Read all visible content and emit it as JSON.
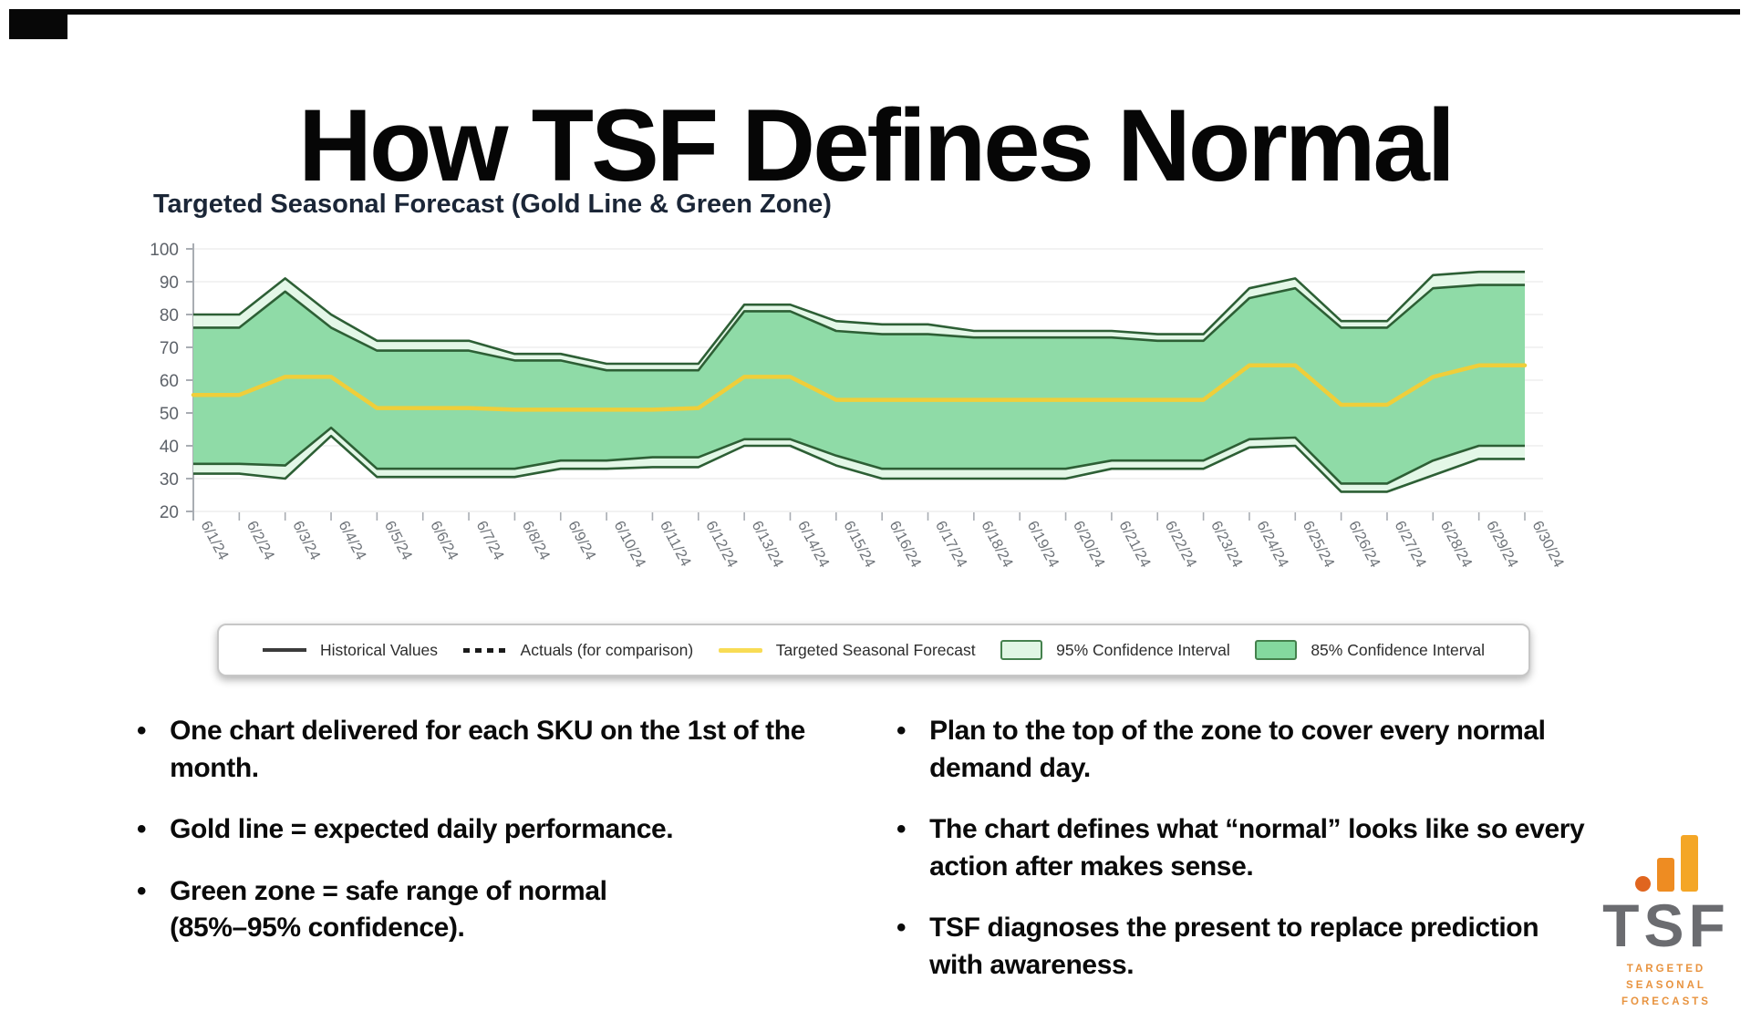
{
  "page": {
    "title": "How TSF Defines Normal"
  },
  "chart": {
    "title": "Targeted Seasonal Forecast (Gold Line & Green Zone)",
    "legend": [
      {
        "label": "Historical Values",
        "swatch": "line-dark"
      },
      {
        "label": "Actuals (for comparison)",
        "swatch": "line-dotted"
      },
      {
        "label": "Targeted Seasonal Forecast",
        "swatch": "line-gold"
      },
      {
        "label": "95% Confidence Interval",
        "swatch": "fill-light-green"
      },
      {
        "label": "85% Confidence Interval",
        "swatch": "fill-green"
      }
    ]
  },
  "chart_data": {
    "type": "area",
    "title": "Targeted Seasonal Forecast (Gold Line & Green Zone)",
    "categories": [
      "6/1/24",
      "6/2/24",
      "6/3/24",
      "6/4/24",
      "6/5/24",
      "6/6/24",
      "6/7/24",
      "6/8/24",
      "6/9/24",
      "6/10/24",
      "6/11/24",
      "6/12/24",
      "6/13/24",
      "6/14/24",
      "6/15/24",
      "6/16/24",
      "6/17/24",
      "6/18/24",
      "6/19/24",
      "6/20/24",
      "6/21/24",
      "6/22/24",
      "6/23/24",
      "6/24/24",
      "6/25/24",
      "6/26/24",
      "6/27/24",
      "6/28/24",
      "6/29/24",
      "6/30/24"
    ],
    "ylim": [
      20,
      100
    ],
    "yticks": [
      100,
      90,
      80,
      70,
      60,
      50,
      40,
      30,
      20
    ],
    "grid": "horizontal",
    "legend_position": "bottom",
    "series": [
      {
        "name": "95% Confidence Interval (upper bound)",
        "values": [
          80,
          80,
          91,
          80,
          72,
          72,
          72,
          68,
          68,
          65,
          65,
          65,
          83,
          83,
          78,
          77,
          77,
          75,
          75,
          75,
          75,
          74,
          74,
          88,
          91,
          78,
          78,
          92,
          93,
          93
        ]
      },
      {
        "name": "85% Confidence Interval (upper bound)",
        "values": [
          76,
          76,
          87,
          76,
          69,
          69,
          69,
          66,
          66,
          63,
          63,
          63,
          81,
          81,
          75,
          74,
          74,
          73,
          73,
          73,
          73,
          72,
          72,
          85,
          88,
          76,
          76,
          88,
          89,
          89
        ]
      },
      {
        "name": "Targeted Seasonal Forecast",
        "values": [
          55.5,
          55.5,
          61,
          61,
          51.5,
          51.5,
          51.5,
          51,
          51,
          51,
          51,
          51.5,
          61,
          61,
          54,
          54,
          54,
          54,
          54,
          54,
          54,
          54,
          54,
          64.5,
          64.5,
          52.5,
          52.5,
          61,
          64.5,
          64.5
        ]
      },
      {
        "name": "85% Confidence Interval (lower bound)",
        "values": [
          34.5,
          34.5,
          34,
          45.5,
          33,
          33,
          33,
          33,
          35.5,
          35.5,
          36.5,
          36.5,
          42,
          42,
          37,
          33,
          33,
          33,
          33,
          33,
          35.5,
          35.5,
          35.5,
          42,
          42.5,
          28.5,
          28.5,
          35.5,
          40,
          40
        ]
      },
      {
        "name": "95% Confidence Interval (lower bound)",
        "values": [
          31.5,
          31.5,
          30,
          43,
          30.5,
          30.5,
          30.5,
          30.5,
          33,
          33,
          33.5,
          33.5,
          40,
          40,
          34,
          30,
          30,
          30,
          30,
          30,
          33,
          33,
          33,
          39.5,
          40,
          26,
          26,
          31,
          36,
          36
        ]
      }
    ],
    "colors": {
      "ci95_fill": "#e3f7e7",
      "ci85_fill": "#8fdba7",
      "band_outline": "#2d5f35",
      "forecast_gold": "#efce3a",
      "grid": "#ededed",
      "axis": "#a9adb3",
      "tick_label": "#6e7379"
    }
  },
  "bullets": {
    "left": [
      {
        "text": "One chart delivered for each SKU on the 1st of the\nmonth."
      },
      {
        "text": "Gold line = expected daily performance."
      },
      {
        "text": "Green zone = safe range of normal\n(85%–95% confidence)."
      }
    ],
    "right": [
      {
        "text": "Plan to the top of the zone to cover every normal\ndemand day."
      },
      {
        "text": "The chart defines what “normal” looks like so every\naction after makes sense."
      },
      {
        "text": "TSF diagnoses the present to replace prediction\nwith awareness."
      }
    ]
  },
  "logo": {
    "text": "TSF",
    "subtitle_line1": "TARGETED",
    "subtitle_line2": "SEASONAL FORECASTS"
  }
}
